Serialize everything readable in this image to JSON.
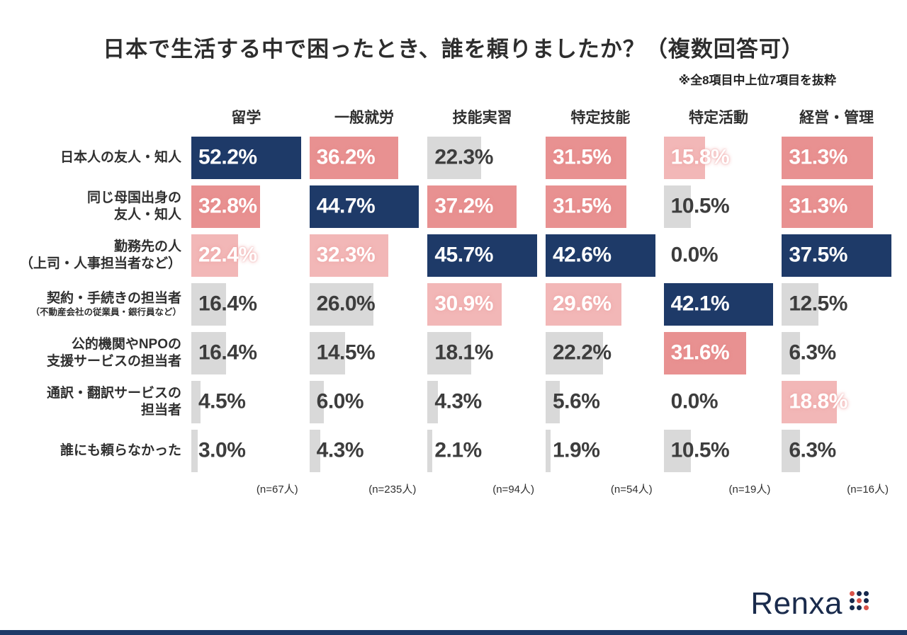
{
  "title": "日本で生活する中で困ったとき、誰を頼りましたか？（複数回答可）",
  "note": "※全8項目中上位7項目を抜粋",
  "logo": {
    "text": "Renxa",
    "dot_colors": [
      "#d9534a",
      "#16294d",
      "#16294d",
      "#16294d",
      "#d9534a",
      "#16294d",
      "#16294d",
      "#16294d",
      "#d9534a"
    ]
  },
  "colors": {
    "navy": "#1e3a68",
    "pink": "#e89191",
    "lightpink": "#f2b7b7",
    "gray": "#d9d9d9",
    "dark_text": "#3d3d3d",
    "white_text": "#ffffff",
    "accent_bottom": "#1e3a68"
  },
  "chart_data": {
    "type": "bar",
    "variant": "matrix-horizontal-bars",
    "unit": "%",
    "title": "日本で生活する中で困ったとき、誰を頼りましたか？（複数回答可）",
    "columns": [
      {
        "label": "留学",
        "n_label": "(n=67人)",
        "max": 52.2
      },
      {
        "label": "一般就労",
        "n_label": "(n=235人)",
        "max": 44.7
      },
      {
        "label": "技能実習",
        "n_label": "(n=94人)",
        "max": 45.7
      },
      {
        "label": "特定技能",
        "n_label": "(n=54人)",
        "max": 42.6
      },
      {
        "label": "特定活動",
        "n_label": "(n=19人)",
        "max": 42.1
      },
      {
        "label": "経営・管理",
        "n_label": "(n=16人)",
        "max": 37.5
      }
    ],
    "rows": [
      {
        "label_lines": [
          "日本人の友人・知人"
        ],
        "small_line_index": null
      },
      {
        "label_lines": [
          "同じ母国出身の",
          "友人・知人"
        ],
        "small_line_index": null
      },
      {
        "label_lines": [
          "勤務先の人",
          "（上司・人事担当者など）"
        ],
        "small_line_index": null
      },
      {
        "label_lines": [
          "契約・手続きの担当者",
          "（不動産会社の従業員・銀行員など）"
        ],
        "small_line_index": 1
      },
      {
        "label_lines": [
          "公的機関やNPOの",
          "支援サービスの担当者"
        ],
        "small_line_index": null
      },
      {
        "label_lines": [
          "通訳・翻訳サービスの",
          "担当者"
        ],
        "small_line_index": null
      },
      {
        "label_lines": [
          "誰にも頼らなかった"
        ],
        "small_line_index": null
      }
    ],
    "cells": [
      [
        {
          "value": 52.2,
          "display": "52.2%",
          "color": "navy"
        },
        {
          "value": 36.2,
          "display": "36.2%",
          "color": "pink"
        },
        {
          "value": 22.3,
          "display": "22.3%",
          "color": "gray"
        },
        {
          "value": 31.5,
          "display": "31.5%",
          "color": "pink"
        },
        {
          "value": 15.8,
          "display": "15.8%",
          "color": "lightpink"
        },
        {
          "value": 31.3,
          "display": "31.3%",
          "color": "pink"
        }
      ],
      [
        {
          "value": 32.8,
          "display": "32.8%",
          "color": "pink"
        },
        {
          "value": 44.7,
          "display": "44.7%",
          "color": "navy"
        },
        {
          "value": 37.2,
          "display": "37.2%",
          "color": "pink"
        },
        {
          "value": 31.5,
          "display": "31.5%",
          "color": "pink"
        },
        {
          "value": 10.5,
          "display": "10.5%",
          "color": "gray"
        },
        {
          "value": 31.3,
          "display": "31.3%",
          "color": "pink"
        }
      ],
      [
        {
          "value": 22.4,
          "display": "22.4%",
          "color": "lightpink"
        },
        {
          "value": 32.3,
          "display": "32.3%",
          "color": "lightpink"
        },
        {
          "value": 45.7,
          "display": "45.7%",
          "color": "navy"
        },
        {
          "value": 42.6,
          "display": "42.6%",
          "color": "navy"
        },
        {
          "value": 0.0,
          "display": "0.0%",
          "color": "none"
        },
        {
          "value": 37.5,
          "display": "37.5%",
          "color": "navy"
        }
      ],
      [
        {
          "value": 16.4,
          "display": "16.4%",
          "color": "gray"
        },
        {
          "value": 26.0,
          "display": "26.0%",
          "color": "gray"
        },
        {
          "value": 30.9,
          "display": "30.9%",
          "color": "lightpink"
        },
        {
          "value": 29.6,
          "display": "29.6%",
          "color": "lightpink"
        },
        {
          "value": 42.1,
          "display": "42.1%",
          "color": "navy"
        },
        {
          "value": 12.5,
          "display": "12.5%",
          "color": "gray"
        }
      ],
      [
        {
          "value": 16.4,
          "display": "16.4%",
          "color": "gray"
        },
        {
          "value": 14.5,
          "display": "14.5%",
          "color": "gray"
        },
        {
          "value": 18.1,
          "display": "18.1%",
          "color": "gray"
        },
        {
          "value": 22.2,
          "display": "22.2%",
          "color": "gray"
        },
        {
          "value": 31.6,
          "display": "31.6%",
          "color": "pink"
        },
        {
          "value": 6.3,
          "display": "6.3%",
          "color": "gray"
        }
      ],
      [
        {
          "value": 4.5,
          "display": "4.5%",
          "color": "gray"
        },
        {
          "value": 6.0,
          "display": "6.0%",
          "color": "gray"
        },
        {
          "value": 4.3,
          "display": "4.3%",
          "color": "gray"
        },
        {
          "value": 5.6,
          "display": "5.6%",
          "color": "gray"
        },
        {
          "value": 0.0,
          "display": "0.0%",
          "color": "none"
        },
        {
          "value": 18.8,
          "display": "18.8%",
          "color": "lightpink"
        }
      ],
      [
        {
          "value": 3.0,
          "display": "3.0%",
          "color": "gray"
        },
        {
          "value": 4.3,
          "display": "4.3%",
          "color": "gray"
        },
        {
          "value": 2.1,
          "display": "2.1%",
          "color": "gray"
        },
        {
          "value": 1.9,
          "display": "1.9%",
          "color": "gray"
        },
        {
          "value": 10.5,
          "display": "10.5%",
          "color": "gray"
        },
        {
          "value": 6.3,
          "display": "6.3%",
          "color": "gray"
        }
      ]
    ]
  }
}
